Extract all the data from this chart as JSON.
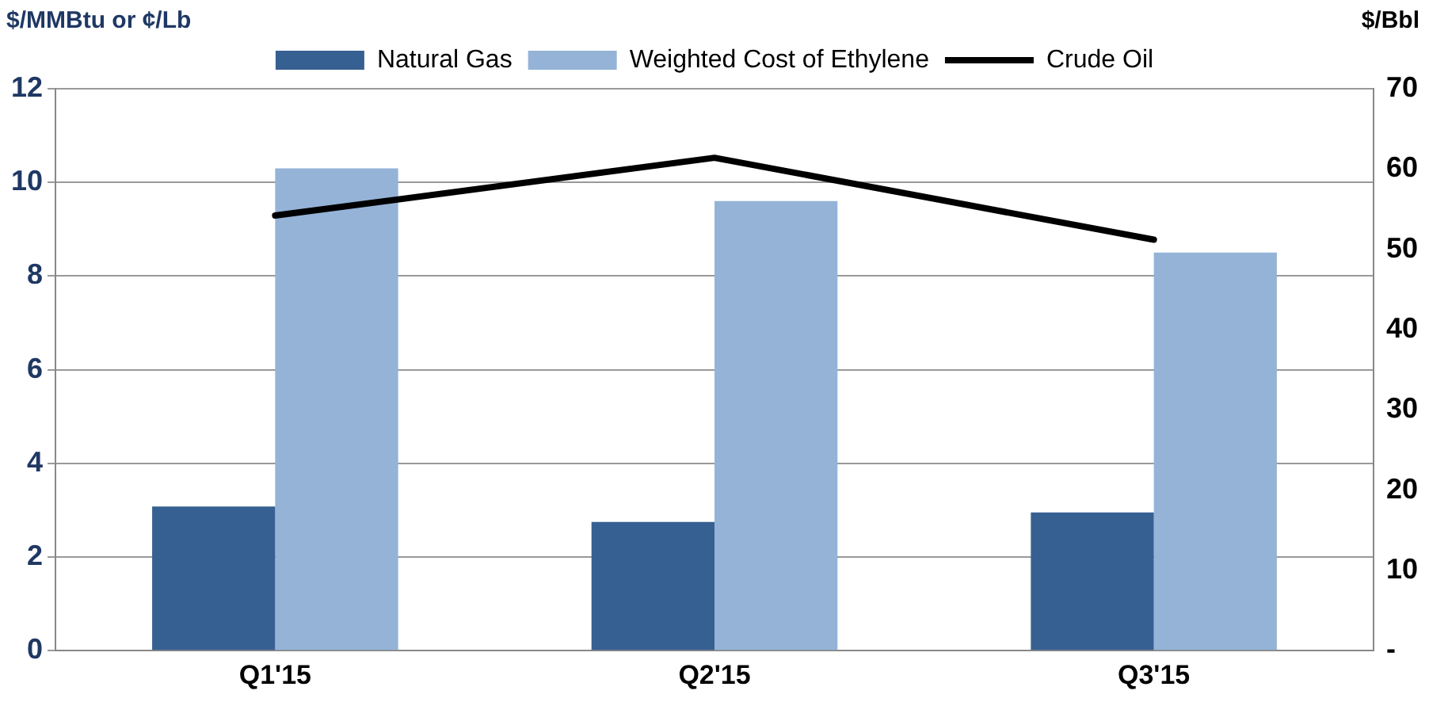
{
  "chart_data": {
    "type": "bar",
    "ylabel": "$/MMBtu or ¢/Lb",
    "y2label": "$/Bbl",
    "categories": [
      "Q1'15",
      "Q2'15",
      "Q3'15"
    ],
    "series": [
      {
        "name": "Natural Gas",
        "color": "#376092",
        "values": [
          3.08,
          2.75,
          2.95
        ]
      },
      {
        "name": "Weighted Cost of Ethylene",
        "color": "#95b3d7",
        "values": [
          10.3,
          9.6,
          8.5
        ]
      },
      {
        "name": "Crude Oil",
        "type": "line",
        "axis": "y2",
        "color": "#000000",
        "values": [
          54.2,
          61.4,
          51.2
        ]
      }
    ],
    "ylim": [
      0,
      12
    ],
    "yticks": [
      0,
      2,
      4,
      6,
      8,
      10,
      12
    ],
    "y2lim": [
      0,
      70
    ],
    "y2ticks": [
      {
        "value": 0,
        "label": "-"
      },
      10,
      20,
      30,
      40,
      50,
      60,
      70
    ],
    "grid": "y",
    "legend": "top",
    "marker": "none",
    "line_style": "solid"
  }
}
